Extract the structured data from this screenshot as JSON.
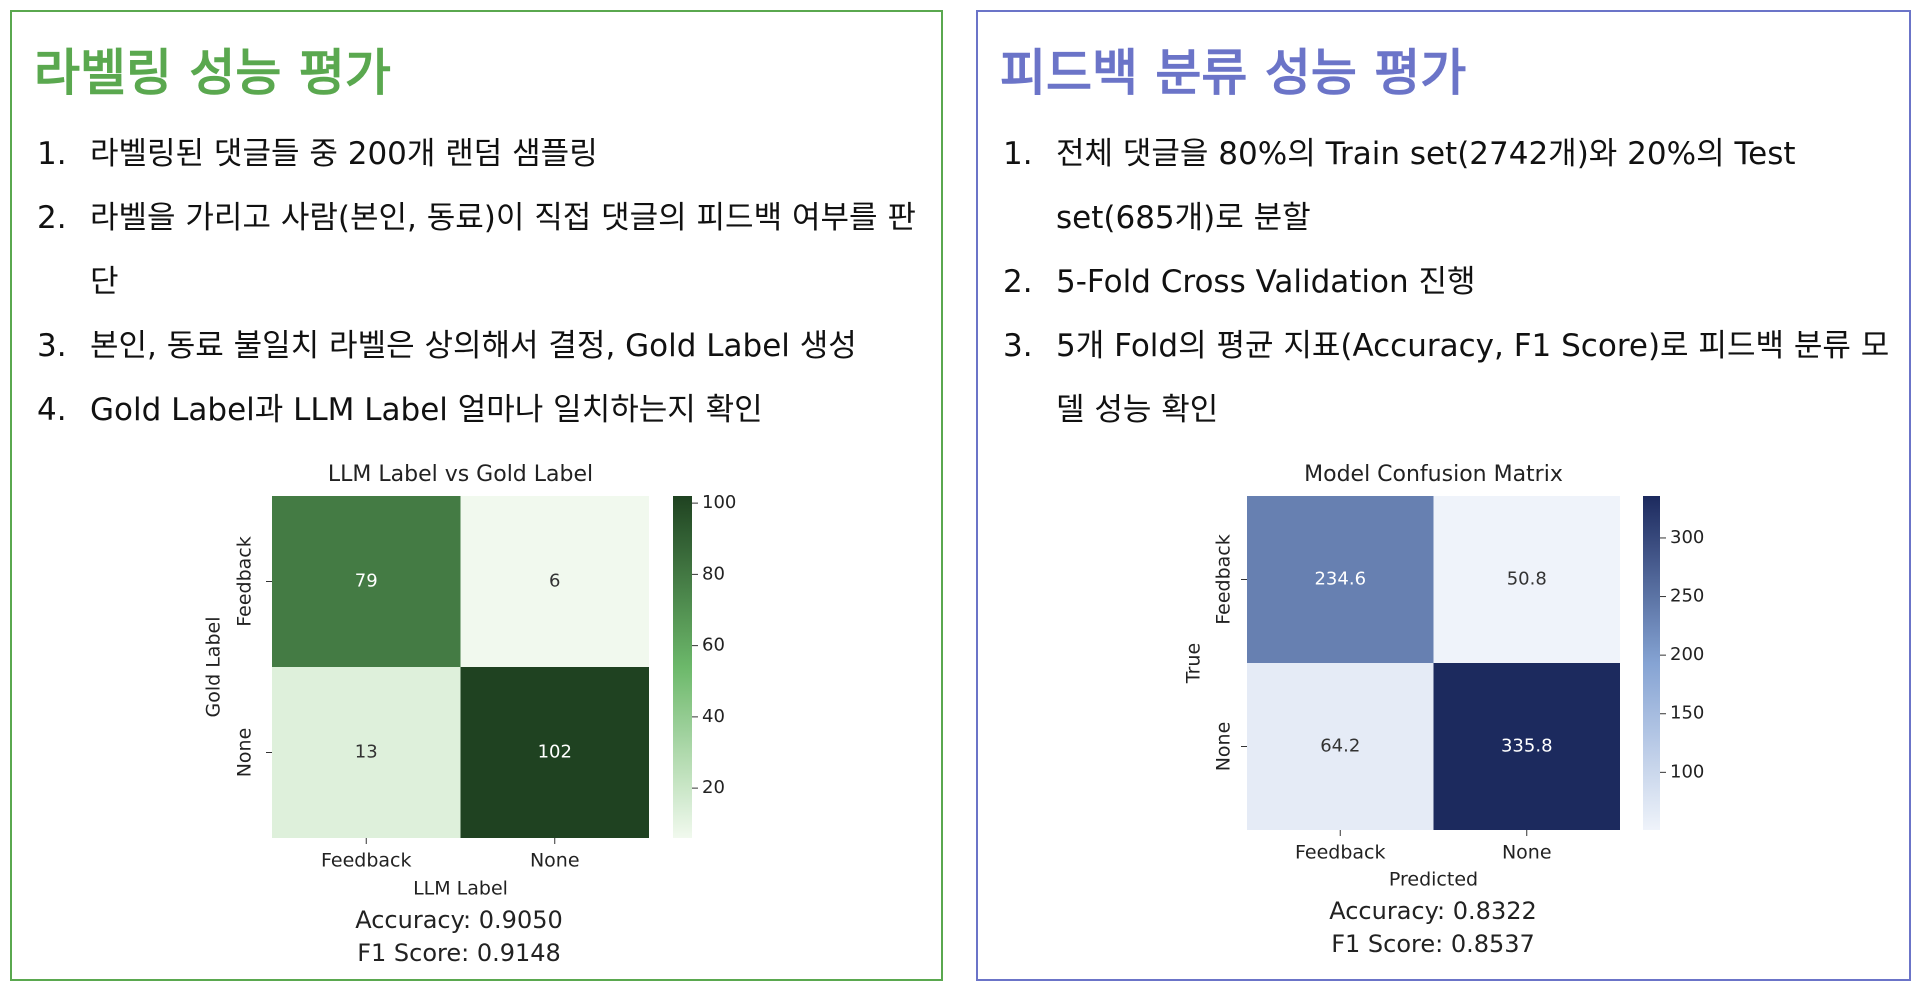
{
  "panels": [
    {
      "title": "라벨링 성능 평가",
      "items": [
        {
          "number": "1.",
          "text": "라벨링된 댓글들 중 200개 랜덤 샘플링"
        },
        {
          "number": "2.",
          "text": "라벨을 가리고 사람(본인, 동료)이 직접 댓글의 피드백 여부를 판단"
        },
        {
          "number": "3.",
          "text": "본인, 동료 불일치 라벨은 상의해서 결정, Gold Label 생성"
        },
        {
          "number": "4.",
          "text": "Gold Label과 LLM Label 얼마나 일치하는지 확인"
        }
      ]
    },
    {
      "title": "피드백 분류 성능 평가",
      "items": [
        {
          "number": "1.",
          "text": "전체 댓글을 80%의 Train set(2742개)와 20%의 Test set(685개)로 분할"
        },
        {
          "number": "2.",
          "text": "5-Fold Cross Validation 진행"
        },
        {
          "number": "3.",
          "text": "5개 Fold의 평균 지표(Accuracy, F1 Score)로 피드백 분류 모델 성능 확인"
        }
      ]
    }
  ],
  "chart_data": [
    {
      "type": "heatmap",
      "title": "LLM Label vs Gold Label",
      "xlabel": "LLM Label",
      "ylabel": "Gold Label",
      "x": [
        "Feedback",
        "None"
      ],
      "y": [
        "Feedback",
        "None"
      ],
      "values": [
        [
          79,
          6
        ],
        [
          13,
          102
        ]
      ],
      "zlim": [
        6,
        102
      ],
      "zticks": [
        20,
        40,
        60,
        80,
        100
      ],
      "colormap": [
        "#f1f9ee",
        "#6cb86a",
        "#1f4221"
      ],
      "annotations": [
        "Accuracy: 0.9050",
        "F1 Score: 0.9148"
      ]
    },
    {
      "type": "heatmap",
      "title": "Model Confusion Matrix",
      "xlabel": "Predicted",
      "ylabel": "True",
      "x": [
        "Feedback",
        "None"
      ],
      "y": [
        "Feedback",
        "None"
      ],
      "values": [
        [
          234.6,
          50.8
        ],
        [
          64.2,
          335.8
        ]
      ],
      "zlim": [
        50.8,
        335.8
      ],
      "zticks": [
        100,
        150,
        200,
        250,
        300
      ],
      "colormap": [
        "#eff3fa",
        "#85a3d3",
        "#1c2a5e"
      ],
      "annotations": [
        "Accuracy: 0.8322",
        "F1 Score: 0.8537"
      ]
    }
  ]
}
